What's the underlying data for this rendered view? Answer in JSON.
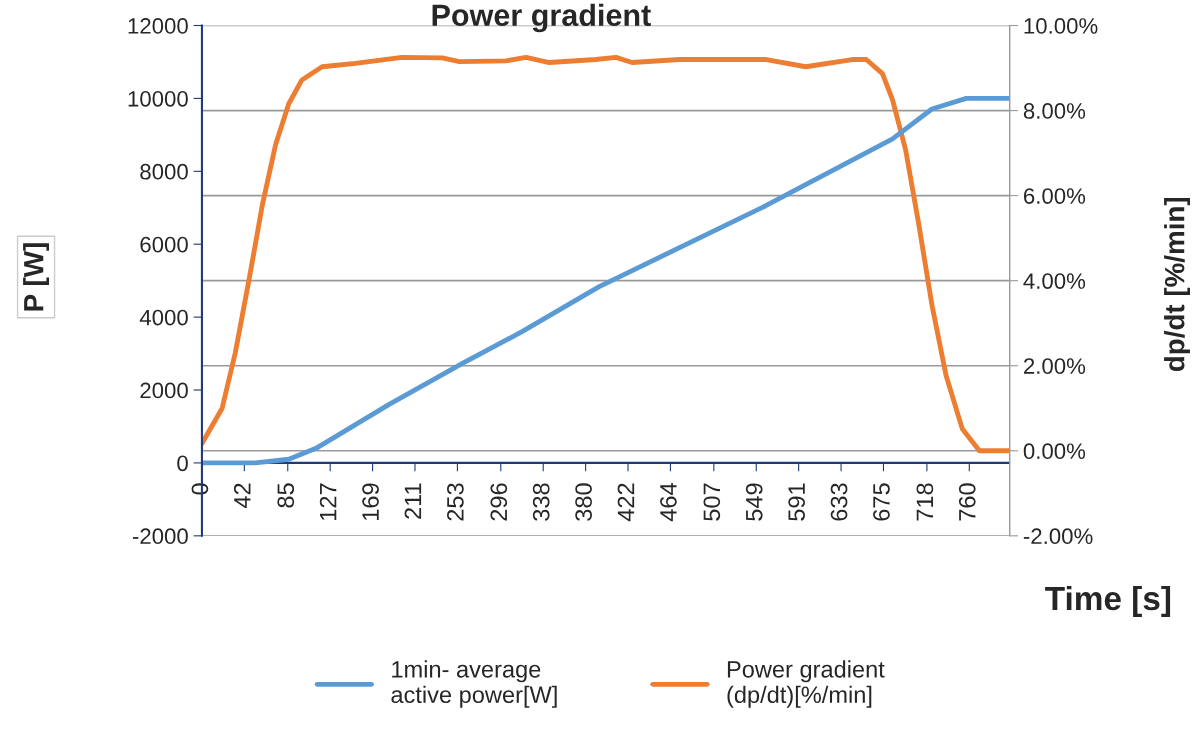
{
  "chart_data": {
    "type": "line",
    "title": "Power gradient",
    "xlabel": "Time [s]",
    "ylabel": "P [W]",
    "y2label": "dp/dt [%/min]",
    "xlim": [
      0,
      800
    ],
    "xticks": [
      0,
      42,
      85,
      127,
      169,
      211,
      253,
      296,
      338,
      380,
      422,
      464,
      507,
      549,
      591,
      633,
      675,
      718,
      760
    ],
    "ylim": [
      -2000,
      12000
    ],
    "yticks": [
      -2000,
      0,
      2000,
      4000,
      6000,
      8000,
      10000,
      12000
    ],
    "y2lim": [
      -2,
      10
    ],
    "y2ticks": [
      {
        "value": -2,
        "label": "-2.00%"
      },
      {
        "value": 0,
        "label": "0.00%"
      },
      {
        "value": 2,
        "label": "2.00%"
      },
      {
        "value": 4,
        "label": "4.00%"
      },
      {
        "value": 6,
        "label": "6.00%"
      },
      {
        "value": 8,
        "label": "8.00%"
      },
      {
        "value": 10,
        "label": "10.00%"
      }
    ],
    "grid": "y",
    "legend": "bottom",
    "ref_lines": [
      {
        "axis": "y",
        "value": 0,
        "color": "#1f3a7a"
      }
    ],
    "series": [
      {
        "name": "1min- average\nactive power[W]",
        "color": "#5b9bd5",
        "x": [
          0,
          53,
          86,
          113,
          185,
          258,
          317,
          393,
          558,
          684,
          723,
          757,
          800
        ],
        "values": [
          0,
          0,
          100,
          400,
          1600,
          2730,
          3600,
          4830,
          7050,
          8890,
          9710,
          10000,
          10000
        ]
      },
      {
        "name": "Power gradient\n(dp/dt)[%/min]",
        "color": "#ed7d31",
        "axis": "y2",
        "x": [
          0,
          20,
          33,
          47,
          60,
          73,
          86,
          99,
          119,
          152,
          198,
          238,
          255,
          301,
          321,
          344,
          390,
          410,
          426,
          473,
          559,
          598,
          644,
          658,
          674,
          684,
          697,
          710,
          723,
          737,
          753,
          770,
          800
        ],
        "values": [
          0.17,
          1.0,
          2.3,
          4.07,
          5.8,
          7.2,
          8.16,
          8.72,
          9.03,
          9.11,
          9.25,
          9.24,
          9.15,
          9.17,
          9.25,
          9.13,
          9.2,
          9.25,
          9.13,
          9.2,
          9.2,
          9.03,
          9.2,
          9.2,
          8.87,
          8.25,
          7.07,
          5.32,
          3.43,
          1.77,
          0.52,
          0,
          0
        ]
      }
    ]
  }
}
